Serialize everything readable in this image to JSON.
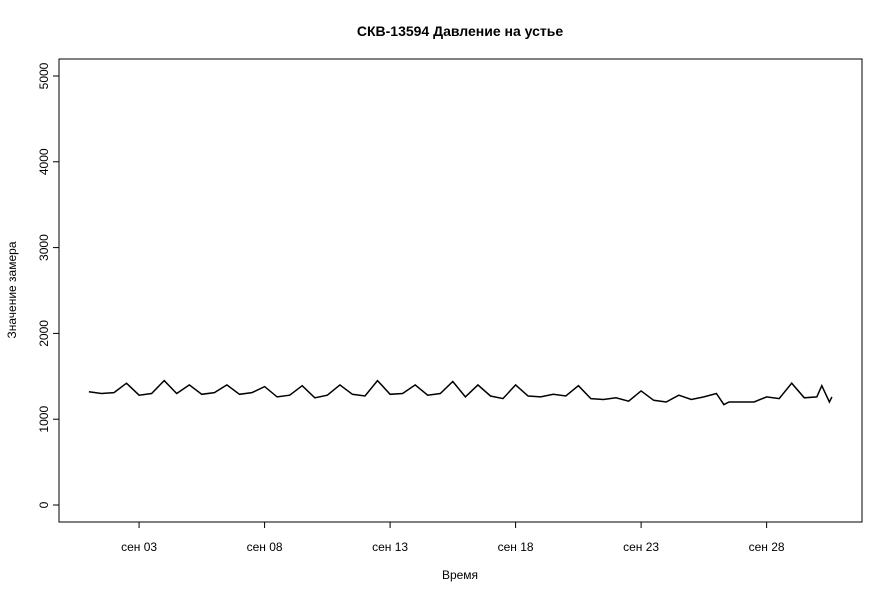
{
  "chart_data": {
    "type": "line",
    "title": "СКВ-13594 Давление на устье",
    "x_label": "Время",
    "y_label": "Значение замера",
    "x": [
      1.0,
      1.5,
      2.0,
      2.5,
      3.0,
      3.5,
      4.0,
      4.5,
      5.0,
      5.5,
      6.0,
      6.5,
      7.0,
      7.5,
      8.0,
      8.5,
      9.0,
      9.5,
      10.0,
      10.5,
      11.0,
      11.5,
      12.0,
      12.5,
      13.0,
      13.5,
      14.0,
      14.5,
      15.0,
      15.5,
      16.0,
      16.5,
      17.0,
      17.5,
      18.0,
      18.5,
      19.0,
      19.5,
      20.0,
      20.5,
      21.0,
      21.5,
      22.0,
      22.5,
      23.0,
      23.5,
      24.0,
      24.5,
      25.0,
      25.5,
      26.0,
      26.3,
      26.5,
      27.5,
      28.0,
      28.5,
      29.0,
      29.5,
      30.0,
      30.2,
      30.5,
      30.6
    ],
    "series": [
      {
        "name": "Давление на устье",
        "color": "#000000",
        "values": [
          1320,
          1300,
          1310,
          1420,
          1280,
          1300,
          1450,
          1300,
          1400,
          1290,
          1310,
          1400,
          1290,
          1310,
          1380,
          1260,
          1280,
          1390,
          1250,
          1280,
          1400,
          1290,
          1270,
          1450,
          1290,
          1300,
          1400,
          1280,
          1300,
          1440,
          1260,
          1400,
          1270,
          1240,
          1400,
          1270,
          1260,
          1290,
          1270,
          1390,
          1240,
          1230,
          1250,
          1210,
          1330,
          1220,
          1200,
          1280,
          1230,
          1260,
          1300,
          1170,
          1200,
          1200,
          1260,
          1240,
          1420,
          1250,
          1260,
          1390,
          1200,
          1260
        ]
      }
    ],
    "xlim": [
      -0.19,
      31.8
    ],
    "xticks": [
      {
        "value": 3,
        "label": "сен 03"
      },
      {
        "value": 8,
        "label": "сен 08"
      },
      {
        "value": 13,
        "label": "сен 13"
      },
      {
        "value": 18,
        "label": "сен 18"
      },
      {
        "value": 23,
        "label": "сен 23"
      },
      {
        "value": 28,
        "label": "сен 28"
      }
    ],
    "ylim": [
      -198,
      5198
    ],
    "yticks": [
      0,
      1000,
      2000,
      3000,
      4000,
      5000
    ]
  }
}
